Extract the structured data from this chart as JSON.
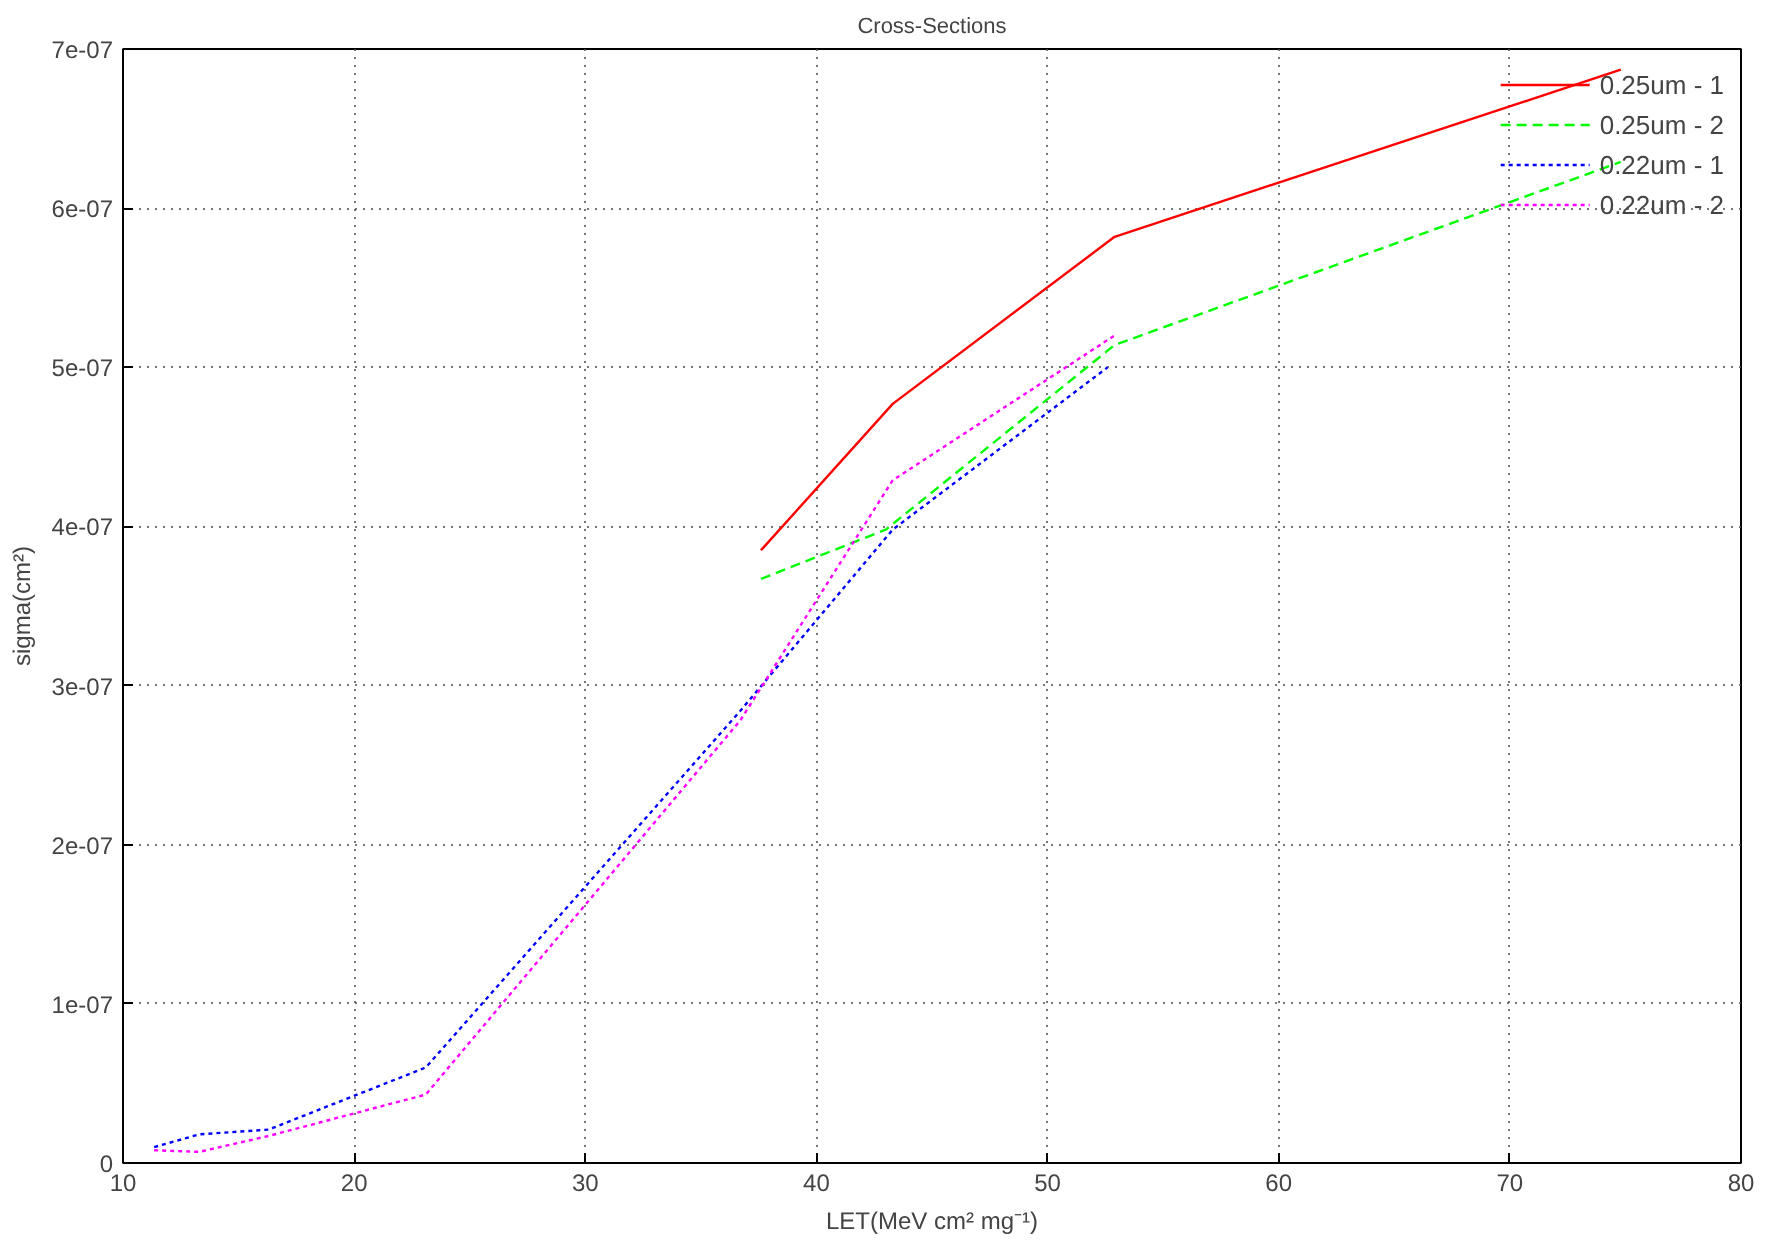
{
  "chart_data": {
    "type": "line",
    "title": "Cross-Sections",
    "xlabel": "LET(MeV cm² mg⁻¹)",
    "ylabel": "sigma(cm²)",
    "xlim": [
      10,
      80
    ],
    "xticks": [
      10,
      20,
      30,
      40,
      50,
      60,
      70,
      80
    ],
    "ylim": [
      0,
      7e-07
    ],
    "yticks": [
      0,
      {
        "value": 1e-07,
        "label": "1e-07"
      },
      {
        "value": 2e-07,
        "label": "2e-07"
      },
      {
        "value": 3e-07,
        "label": "3e-07"
      },
      {
        "value": 4e-07,
        "label": "4e-07"
      },
      {
        "value": 5e-07,
        "label": "5e-07"
      },
      {
        "value": 6e-07,
        "label": "6e-07"
      },
      {
        "value": 7e-07,
        "label": "7e-07"
      }
    ],
    "grid": true,
    "legend": "top right",
    "series": [
      {
        "name": "0.25um - 1",
        "color": "#ff0000",
        "line_style": "solid",
        "x": [
          37.6,
          43.3,
          52.9,
          74.8
        ],
        "values": [
          3.85e-07,
          4.77e-07,
          5.82e-07,
          6.87e-07
        ]
      },
      {
        "name": "0.25um - 2",
        "color": "#00ff00",
        "line_style": "dashed",
        "x": [
          37.6,
          43.0,
          52.9,
          74.8
        ],
        "values": [
          3.67e-07,
          3.98e-07,
          5.14e-07,
          6.29e-07
        ]
      },
      {
        "name": "0.22um - 1",
        "color": "#0000ff",
        "line_style": "dotted",
        "x": [
          11.35,
          13.3,
          16.3,
          23.1,
          36.7,
          43.3,
          52.6
        ],
        "values": [
          1e-08,
          1.8e-08,
          2.1e-08,
          6e-08,
          2.84e-07,
          3.98e-07,
          5e-07
        ]
      },
      {
        "name": "0.22um - 2",
        "color": "#ff00ff",
        "line_style": "dotted",
        "x": [
          11.35,
          13.3,
          16.3,
          23.1,
          36.7,
          43.3,
          52.9
        ],
        "values": [
          8e-09,
          7e-09,
          1.7e-08,
          4.3e-08,
          2.78e-07,
          4.29e-07,
          5.2e-07
        ]
      }
    ]
  }
}
